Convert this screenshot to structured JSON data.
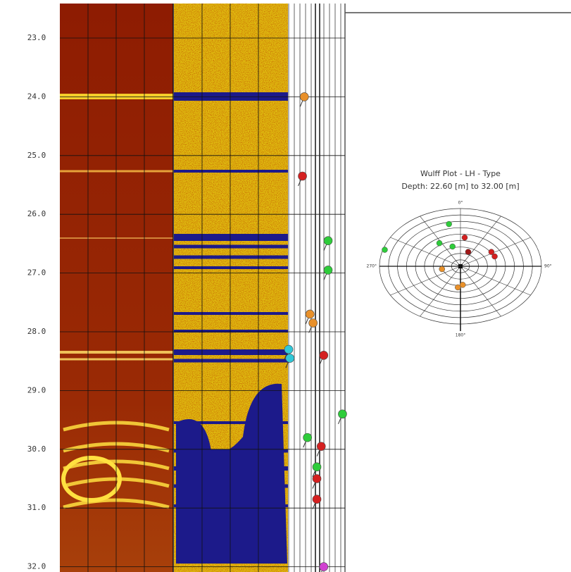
{
  "depth_axis": {
    "labels": [
      "23.0",
      "24.0",
      "25.0",
      "26.0",
      "27.0",
      "28.0",
      "29.0",
      "30.0",
      "31.0",
      "32.0"
    ]
  },
  "tadpoles": [
    {
      "depth": 24.0,
      "dip": 25,
      "color": "#e8902a"
    },
    {
      "depth": 25.35,
      "dip": 22,
      "color": "#d42020"
    },
    {
      "depth": 26.45,
      "dip": 63,
      "color": "#2ecc3a"
    },
    {
      "depth": 26.95,
      "dip": 63,
      "color": "#2ecc3a"
    },
    {
      "depth": 27.7,
      "dip": 34,
      "color": "#e8902a"
    },
    {
      "depth": 27.85,
      "dip": 39,
      "color": "#e8902a"
    },
    {
      "depth": 28.3,
      "dip": 0,
      "color": "#30c8d8"
    },
    {
      "depth": 28.45,
      "dip": 2,
      "color": "#30c8d8"
    },
    {
      "depth": 28.4,
      "dip": 56,
      "color": "#d42020"
    },
    {
      "depth": 29.4,
      "dip": 86,
      "color": "#2ecc3a"
    },
    {
      "depth": 29.8,
      "dip": 30,
      "color": "#2ecc3a"
    },
    {
      "depth": 29.95,
      "dip": 52,
      "color": "#d42020"
    },
    {
      "depth": 30.3,
      "dip": 45,
      "color": "#2ecc3a"
    },
    {
      "depth": 30.5,
      "dip": 45,
      "color": "#d42020"
    },
    {
      "depth": 30.85,
      "dip": 45,
      "color": "#d42020"
    },
    {
      "depth": 32.0,
      "dip": 56,
      "color": "#d040d0"
    }
  ],
  "wulff_plot": {
    "title": "Wulff Plot - LH - Type",
    "subtitle": "Depth: 22.60 [m] to 32.00 [m]",
    "direction_labels": [
      "0°",
      "90°",
      "180°",
      "270°"
    ],
    "poles": [
      {
        "azimuth": 287,
        "dip": 88,
        "color": "#2ecc3a"
      },
      {
        "azimuth": 349,
        "dip": 67,
        "color": "#2ecc3a"
      },
      {
        "azimuth": 327,
        "dip": 43,
        "color": "#2ecc3a"
      },
      {
        "azimuth": 344,
        "dip": 32,
        "color": "#2ecc3a"
      },
      {
        "azimuth": 6,
        "dip": 45,
        "color": "#d42020"
      },
      {
        "azimuth": 21,
        "dip": 24,
        "color": "#a01818"
      },
      {
        "azimuth": 57,
        "dip": 41,
        "color": "#d42020"
      },
      {
        "azimuth": 68,
        "dip": 41,
        "color": "#d42020"
      },
      {
        "azimuth": 258,
        "dip": 21,
        "color": "#e8902a"
      },
      {
        "azimuth": 185,
        "dip": 33,
        "color": "#e8902a"
      },
      {
        "azimuth": 175,
        "dip": 29,
        "color": "#e8902a"
      }
    ]
  }
}
